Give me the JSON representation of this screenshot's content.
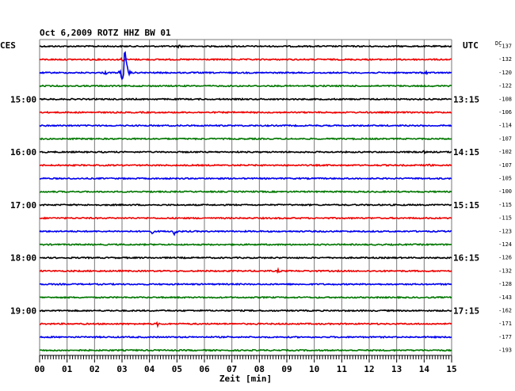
{
  "chart_data": {
    "type": "line",
    "title": "Oct 6,2009     ROTZ HHZ BW 01",
    "left_label": "CES",
    "right_label": "UTC",
    "dc_label": "DC",
    "xlabel": "Zeit [min]",
    "xlim": [
      0,
      15
    ],
    "x_ticks": [
      "00",
      "01",
      "02",
      "03",
      "04",
      "05",
      "06",
      "07",
      "08",
      "09",
      "10",
      "11",
      "12",
      "13",
      "14",
      "15"
    ],
    "grid": true,
    "row_minutes": 15,
    "colors": [
      "#000000",
      "#ee0000",
      "#0000ee",
      "#007700"
    ],
    "hour_labels_left": [
      {
        "row": 4,
        "text": "15:00"
      },
      {
        "row": 8,
        "text": "16:00"
      },
      {
        "row": 12,
        "text": "17:00"
      },
      {
        "row": 16,
        "text": "18:00"
      },
      {
        "row": 20,
        "text": "19:00"
      }
    ],
    "hour_labels_right": [
      {
        "row": 4,
        "text": "13:15"
      },
      {
        "row": 8,
        "text": "14:15"
      },
      {
        "row": 12,
        "text": "15:15"
      },
      {
        "row": 16,
        "text": "16:15"
      },
      {
        "row": 20,
        "text": "17:15"
      }
    ],
    "dc_values": [
      "-137",
      "-132",
      "-120",
      "-122",
      "-108",
      "-106",
      "-114",
      "-107",
      "-102",
      "-107",
      "-105",
      "-100",
      "-115",
      "-115",
      "-123",
      "-124",
      "-126",
      "-132",
      "-128",
      "-143",
      "-162",
      "-171",
      "-177",
      "-193"
    ],
    "events": [
      {
        "row": 2,
        "minute": 3.1,
        "amplitude": 36
      },
      {
        "row": 2,
        "minute": 2.4,
        "amplitude": 3
      },
      {
        "row": 2,
        "minute": 14.1,
        "amplitude": 3
      },
      {
        "row": 1,
        "minute": 3.0,
        "amplitude": 3
      },
      {
        "row": 14,
        "minute": 4.9,
        "amplitude": 7
      },
      {
        "row": 14,
        "minute": 4.1,
        "amplitude": 3
      },
      {
        "row": 17,
        "minute": 8.7,
        "amplitude": 3
      },
      {
        "row": 21,
        "minute": 4.3,
        "amplitude": 3
      },
      {
        "row": 9,
        "minute": 14.2,
        "amplitude": 3
      },
      {
        "row": 8,
        "minute": 14.0,
        "amplitude": 2
      },
      {
        "row": 0,
        "minute": 5.1,
        "amplitude": 3
      }
    ]
  }
}
